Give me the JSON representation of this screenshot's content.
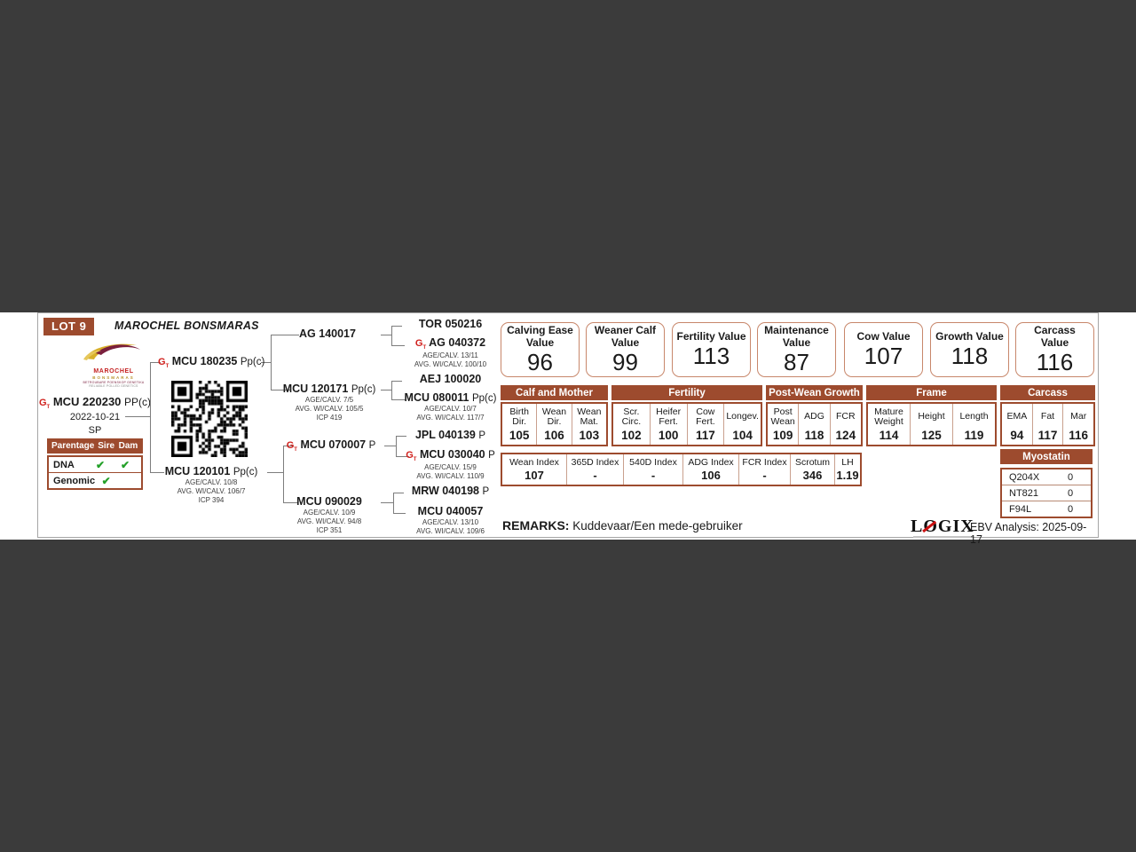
{
  "header": {
    "lot": "LOT 9",
    "title": "MAROCHEL BONSMARAS"
  },
  "logo": {
    "brand": "MAROCHEL",
    "breed": "BONSMARAS",
    "tag_af": "BETROUBARE POENSKOP GENETIKA",
    "tag_en": "RELIABLE POLLED GENETICS"
  },
  "icons": {
    "genomic_letter": "G",
    "genomic_sub": "T"
  },
  "animal": {
    "id": "MCU 220230",
    "suffix": "PP(c)",
    "birth_date": "2022-10-21",
    "status": "SP"
  },
  "parentage": {
    "headers": [
      "Parentage",
      "Sire",
      "Dam"
    ],
    "rows": [
      {
        "label": "DNA",
        "sire": "✔",
        "dam": "✔"
      },
      {
        "label": "Genomic",
        "sire": "✔",
        "dam": ""
      }
    ]
  },
  "pedigree": {
    "sire": {
      "id": "MCU 180235",
      "suffix": "Pp(c)"
    },
    "dam": {
      "id": "MCU 120101",
      "suffix": "Pp(c)",
      "stats": [
        "AGE/CALV. 10/8",
        "AVG. WI/CALV. 106/7",
        "ICP 394"
      ]
    },
    "ss": {
      "id": "AG 140017"
    },
    "sd": {
      "id": "MCU 120171",
      "suffix": "Pp(c)",
      "stats": [
        "AGE/CALV. 7/5",
        "AVG. WI/CALV. 105/5",
        "ICP 419"
      ]
    },
    "ds": {
      "id": "MCU 070007",
      "suffix": "P"
    },
    "dd": {
      "id": "MCU 090029",
      "stats": [
        "AGE/CALV. 10/9",
        "AVG. WI/CALV. 94/8",
        "ICP 351"
      ]
    },
    "sss": {
      "id": "TOR 050216"
    },
    "ssd": {
      "id": "AG 040372",
      "stats": [
        "AGE/CALV. 13/11",
        "AVG. WI/CALV. 100/10"
      ]
    },
    "sds": {
      "id": "AEJ 100020"
    },
    "sdd": {
      "id": "MCU 080011",
      "suffix": "Pp(c)",
      "stats": [
        "AGE/CALV. 10/7",
        "AVG. WI/CALV. 117/7"
      ]
    },
    "dss": {
      "id": "JPL 040139",
      "suffix": "P"
    },
    "dsd": {
      "id": "MCU 030040",
      "suffix": "P",
      "stats": [
        "AGE/CALV. 15/9",
        "AVG. WI/CALV. 110/9"
      ]
    },
    "dds": {
      "id": "MRW 040198",
      "suffix": "P"
    },
    "ddd": {
      "id": "MCU 040057",
      "stats": [
        "AGE/CALV. 13/10",
        "AVG. WI/CALV. 109/6"
      ]
    }
  },
  "values": [
    {
      "label": "Calving Ease Value",
      "value": "96"
    },
    {
      "label": "Weaner Calf Value",
      "value": "99"
    },
    {
      "label": "Fertility Value",
      "value": "113"
    },
    {
      "label": "Maintenance Value",
      "value": "87"
    },
    {
      "label": "Cow Value",
      "value": "107"
    },
    {
      "label": "Growth Value",
      "value": "118"
    },
    {
      "label": "Carcass Value",
      "value": "116"
    }
  ],
  "ebv": {
    "sections": [
      {
        "title": "Calf and Mother",
        "cols": [
          {
            "h": "Birth Dir.",
            "v": "105"
          },
          {
            "h": "Wean Dir.",
            "v": "106"
          },
          {
            "h": "Wean Mat.",
            "v": "103"
          }
        ]
      },
      {
        "title": "Fertility",
        "cols": [
          {
            "h": "Scr. Circ.",
            "v": "102"
          },
          {
            "h": "Heifer Fert.",
            "v": "100"
          },
          {
            "h": "Cow Fert.",
            "v": "117"
          },
          {
            "h": "Longev.",
            "v": "104"
          }
        ]
      },
      {
        "title": "Post-Wean Growth",
        "cols": [
          {
            "h": "Post Wean",
            "v": "109"
          },
          {
            "h": "ADG",
            "v": "118"
          },
          {
            "h": "FCR",
            "v": "124"
          }
        ]
      },
      {
        "title": "Frame",
        "cols": [
          {
            "h": "Mature Weight",
            "v": "114"
          },
          {
            "h": "Height",
            "v": "125"
          },
          {
            "h": "Length",
            "v": "119"
          }
        ]
      },
      {
        "title": "Carcass",
        "cols": [
          {
            "h": "EMA",
            "v": "94"
          },
          {
            "h": "Fat",
            "v": "117"
          },
          {
            "h": "Mar",
            "v": "116"
          }
        ]
      }
    ]
  },
  "indexes": [
    {
      "h": "Wean Index",
      "v": "107"
    },
    {
      "h": "365D Index",
      "v": "-"
    },
    {
      "h": "540D Index",
      "v": "-"
    },
    {
      "h": "ADG Index",
      "v": "106"
    },
    {
      "h": "FCR Index",
      "v": "-"
    },
    {
      "h": "Scrotum",
      "v": "346"
    },
    {
      "h": "LH",
      "v": "1.19"
    }
  ],
  "myostatin": {
    "title": "Myostatin",
    "rows": [
      {
        "gene": "Q204X",
        "value": "0"
      },
      {
        "gene": "NT821",
        "value": "0"
      },
      {
        "gene": "F94L",
        "value": "0"
      }
    ]
  },
  "remarks": {
    "label": "REMARKS:",
    "text": "Kuddevaar/Een mede-gebruiker"
  },
  "footer": {
    "logix_l": "L",
    "logix_o": "O",
    "logix_rest": "GIX",
    "ebv_analysis": "EBV Analysis: 2025-09-17"
  },
  "colors": {
    "accent_brown": "#9d4b2e",
    "box_border": "#c8876b",
    "check_green": "#23a028",
    "genomic_red": "#d0201c"
  }
}
